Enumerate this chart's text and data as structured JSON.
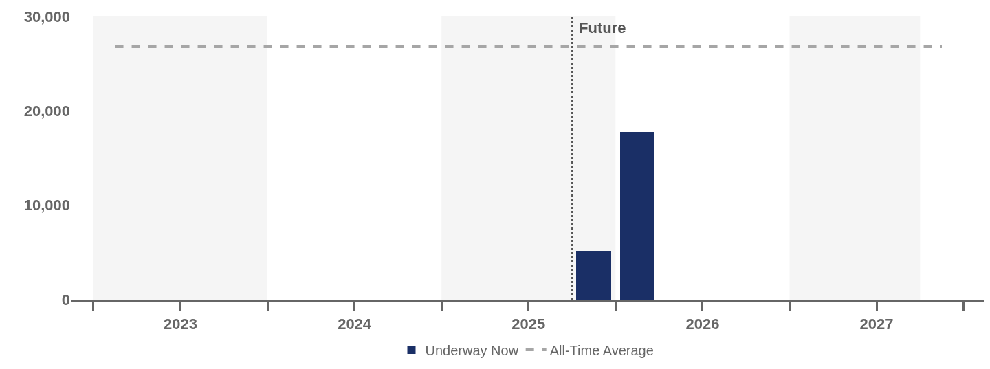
{
  "chart_data": {
    "type": "bar",
    "x": [
      2025.875,
      2026.125
    ],
    "series": [
      {
        "name": "Underway Now",
        "color": "#1a2f66",
        "values": [
          5200,
          17800
        ]
      },
      {
        "name": "All-Time Average",
        "type": "line",
        "color": "#a6a6a6",
        "line_style": "dashed",
        "x": [
          2023.125,
          2027.875
        ],
        "values": [
          26800,
          26800
        ]
      }
    ],
    "xlim": [
      2022.87,
      2028.12
    ],
    "xticks": [
      {
        "value": 2023,
        "label": null
      },
      {
        "value": 2023.5,
        "label": "2023"
      },
      {
        "value": 2024,
        "label": null
      },
      {
        "value": 2024.5,
        "label": "2024"
      },
      {
        "value": 2025,
        "label": null
      },
      {
        "value": 2025.5,
        "label": "2025"
      },
      {
        "value": 2026,
        "label": null
      },
      {
        "value": 2026.5,
        "label": "2026"
      },
      {
        "value": 2027,
        "label": null
      },
      {
        "value": 2027.5,
        "label": "2027"
      },
      {
        "value": 2028,
        "label": null
      }
    ],
    "ylim": [
      0,
      30000
    ],
    "yticks": [
      {
        "value": 0,
        "label": "0"
      },
      {
        "value": 10000,
        "label": "10,000"
      },
      {
        "value": 20000,
        "label": "20,000"
      },
      {
        "value": 30000,
        "label": "30,000"
      }
    ],
    "grid": "y",
    "legend": "bottom",
    "ref_lines": [
      {
        "axis": "x",
        "value": 2025.75,
        "label": "Future",
        "color": "#555555",
        "line_style": "dotted"
      }
    ],
    "bands": [
      {
        "axis": "x",
        "from": 2023,
        "to": 2024,
        "label": null,
        "color": "#f5f5f5"
      },
      {
        "axis": "x",
        "from": 2025,
        "to": 2026,
        "label": null,
        "color": "#f5f5f5"
      },
      {
        "axis": "x",
        "from": 2027,
        "to": 2027.75,
        "label": null,
        "color": "#f5f5f5"
      }
    ]
  }
}
